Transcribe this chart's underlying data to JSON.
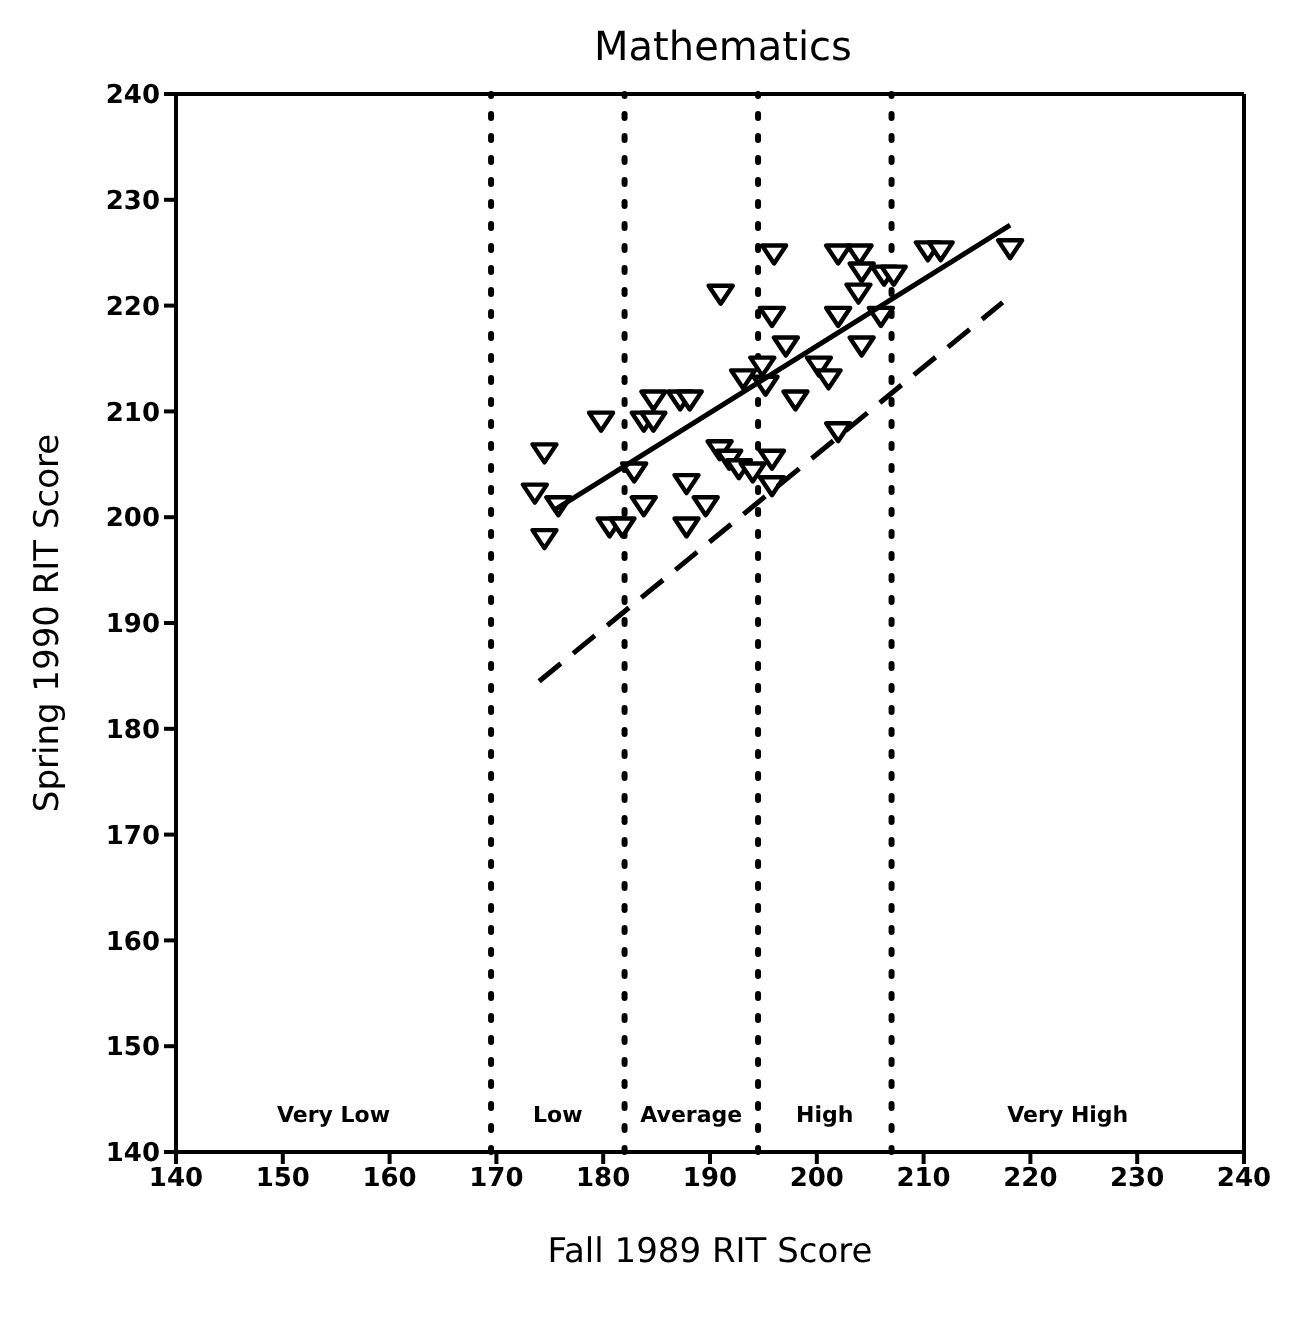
{
  "chart_data": {
    "type": "scatter",
    "title": "Mathematics",
    "xlabel": "Fall 1989 RIT Score",
    "ylabel": "Spring 1990 RIT Score",
    "xlim": [
      140,
      240
    ],
    "xticks": [
      140,
      150,
      160,
      170,
      180,
      190,
      200,
      210,
      220,
      230,
      240
    ],
    "ylim": [
      140,
      240
    ],
    "yticks": [
      140,
      150,
      160,
      170,
      180,
      190,
      200,
      210,
      220,
      230,
      240
    ],
    "grid": false,
    "legend": false,
    "marker": "triangle",
    "series": [
      {
        "color": "#000000",
        "x": [
          196,
          202,
          204,
          204.2,
          206.3,
          207.2,
          210.4,
          211.6,
          218.1,
          191,
          203.9,
          195.8,
          202,
          206,
          197.1,
          204.2,
          194.9,
          193.1,
          195.2,
          200.2,
          201.1,
          198,
          202,
          179.8,
          184.7,
          187.2,
          188.1,
          183.8,
          184.7,
          174.5,
          190.9,
          191.8,
          192.7,
          194,
          195.8,
          195.8,
          182.9,
          187.8,
          173.6,
          175.8,
          183.8,
          189.6,
          180.6,
          181.8,
          187.8,
          174.5
        ],
        "values": [
          225,
          225,
          225,
          223.3,
          223,
          223,
          225.3,
          225.3,
          225.5,
          221.2,
          221.3,
          219.1,
          219.1,
          219.1,
          216.3,
          216.3,
          214.4,
          213.2,
          212.6,
          214.4,
          213.2,
          211.2,
          208.2,
          209.2,
          211.2,
          211.2,
          211.2,
          209.2,
          209.2,
          206.2,
          206.5,
          205.6,
          204.7,
          204.4,
          205.6,
          203.1,
          204.4,
          203.3,
          202.4,
          201.2,
          201.2,
          201.2,
          199.2,
          199.2,
          199.2,
          198.1
        ]
      },
      {
        "type": "line",
        "color": "#000000",
        "line_style": "solid",
        "marker": "none",
        "x": [
          175.3,
          218.1
        ],
        "values": [
          200.6,
          227.6
        ]
      },
      {
        "type": "line",
        "color": "#000000",
        "line_style": "dashed",
        "marker": "none",
        "x": [
          174,
          217.4
        ],
        "values": [
          184.5,
          220.3
        ]
      }
    ],
    "ref_lines": [
      {
        "axis": "x",
        "value": 169.5,
        "line_style": "dotted",
        "color": "#000000"
      },
      {
        "axis": "x",
        "value": 182,
        "line_style": "dotted",
        "color": "#000000"
      },
      {
        "axis": "x",
        "value": 194.5,
        "line_style": "dotted",
        "color": "#000000"
      },
      {
        "axis": "x",
        "value": 207,
        "line_style": "dotted",
        "color": "#000000"
      }
    ],
    "annotations": [
      "Very Low",
      "Low",
      "Average",
      "High",
      "Very High"
    ]
  }
}
